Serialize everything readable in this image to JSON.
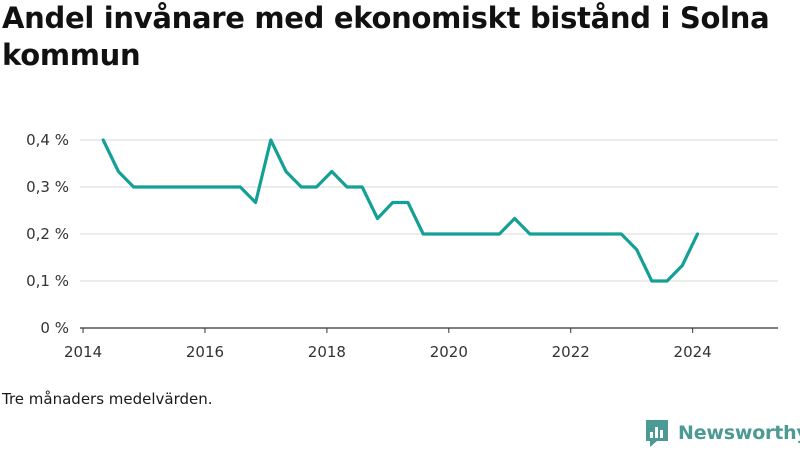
{
  "chart_data": {
    "type": "line",
    "title": "Andel invånare med ekonomiskt bistånd i Solna kommun",
    "xlabel": "",
    "ylabel": "",
    "xlim": [
      2013.95,
      2025.4
    ],
    "ylim": [
      0,
      0.4
    ],
    "grid": true,
    "x_ticks": [
      2014,
      2016,
      2018,
      2020,
      2022,
      2024
    ],
    "x_tick_labels": [
      "2014",
      "2016",
      "2018",
      "2020",
      "2022",
      "2024"
    ],
    "y_ticks": [
      0,
      0.1,
      0.2,
      0.3,
      0.4
    ],
    "y_tick_labels": [
      "0 %",
      "0,1 %",
      "0,2 %",
      "0,3 %",
      "0,4 %"
    ],
    "line_color": "#15a095",
    "series": [
      {
        "x": [
          2014.33,
          2014.58,
          2014.83,
          2015.08,
          2015.33,
          2015.58,
          2015.83,
          2016.08,
          2016.33,
          2016.58,
          2016.83,
          2017.08,
          2017.33,
          2017.58,
          2017.83,
          2018.08,
          2018.33,
          2018.58,
          2018.83,
          2019.08,
          2019.33,
          2019.58,
          2019.83,
          2020.08,
          2020.33,
          2020.58,
          2020.83,
          2021.08,
          2021.33,
          2021.58,
          2021.83,
          2022.08,
          2022.33,
          2022.58,
          2022.83,
          2023.08,
          2023.33,
          2023.58,
          2023.83,
          2024.08
        ],
        "values": [
          0.4,
          0.333,
          0.3,
          0.3,
          0.3,
          0.3,
          0.3,
          0.3,
          0.3,
          0.3,
          0.267,
          0.4,
          0.333,
          0.3,
          0.3,
          0.333,
          0.3,
          0.3,
          0.233,
          0.267,
          0.267,
          0.2,
          0.2,
          0.2,
          0.2,
          0.2,
          0.2,
          0.233,
          0.2,
          0.2,
          0.2,
          0.2,
          0.2,
          0.2,
          0.2,
          0.167,
          0.1,
          0.1,
          0.133,
          0.2
        ]
      }
    ]
  },
  "footer": {
    "note": "Tre månaders medelvärden.",
    "brand": "Newsworthy"
  },
  "colors": {
    "line": "#15a095",
    "brand": "#4d9a94",
    "grid": "#d9d9d9"
  }
}
